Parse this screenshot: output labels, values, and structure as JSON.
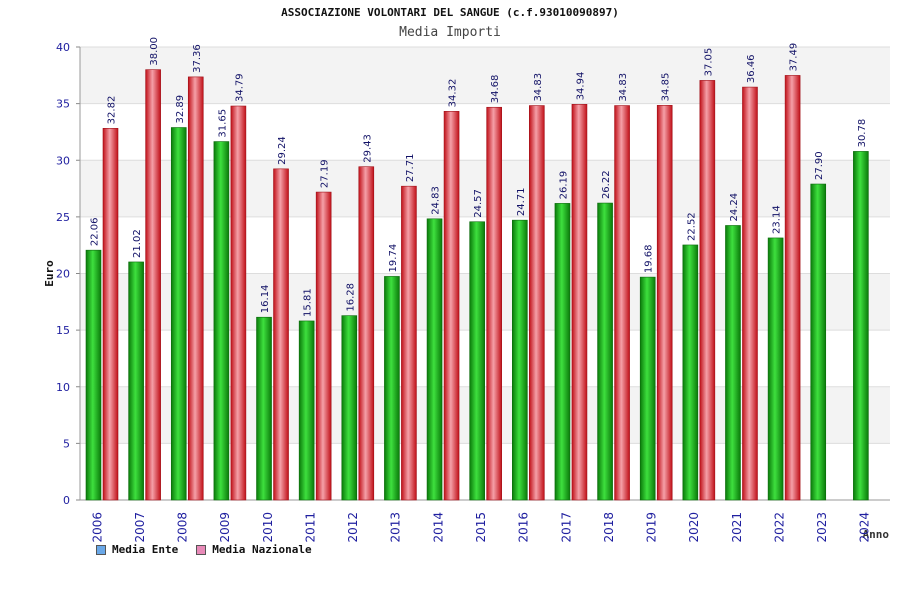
{
  "chart_data": {
    "type": "bar",
    "title": "ASSOCIAZIONE VOLONTARI DEL SANGUE (c.f.93010090897)",
    "subtitle": "Media Importi",
    "xlabel": "Anno",
    "ylabel": "Euro",
    "ylim": [
      0,
      40
    ],
    "yticks": [
      "0",
      "5",
      "10",
      "15",
      "20",
      "25",
      "30",
      "35",
      "40"
    ],
    "categories": [
      "2006",
      "2007",
      "2008",
      "2009",
      "2010",
      "2011",
      "2012",
      "2013",
      "2014",
      "2015",
      "2016",
      "2017",
      "2018",
      "2019",
      "2020",
      "2021",
      "2022",
      "2023",
      "2024"
    ],
    "series": [
      {
        "name": "Media Ente",
        "color": "#14a814",
        "legend_color": "#6aa8e8",
        "values": [
          22.06,
          21.02,
          32.89,
          31.65,
          16.14,
          15.81,
          16.28,
          19.74,
          24.83,
          24.57,
          24.71,
          26.19,
          26.22,
          19.68,
          22.52,
          24.24,
          23.14,
          27.9,
          30.78
        ],
        "labels": [
          "22.06",
          "21.02",
          "32.89",
          "31.65",
          "16.14",
          "15.81",
          "16.28",
          "19.74",
          "24.83",
          "24.57",
          "24.71",
          "26.19",
          "26.22",
          "19.68",
          "22.52",
          "24.24",
          "23.14",
          "27.90",
          "30.78"
        ]
      },
      {
        "name": "Media Nazionale",
        "color": "#e0202a",
        "legend_color": "#e88ab8",
        "values": [
          32.82,
          38.0,
          37.36,
          34.79,
          29.24,
          27.19,
          29.43,
          27.71,
          34.32,
          34.68,
          34.83,
          34.94,
          34.83,
          34.85,
          37.05,
          36.46,
          37.49,
          null,
          null
        ],
        "labels": [
          "32.82",
          "38.00",
          "37.36",
          "34.79",
          "29.24",
          "27.19",
          "29.43",
          "27.71",
          "34.32",
          "34.68",
          "34.83",
          "34.94",
          "34.83",
          "34.85",
          "37.05",
          "36.46",
          "37.49",
          null,
          null
        ]
      }
    ],
    "grid": true,
    "legend_position": "bottom-left"
  }
}
